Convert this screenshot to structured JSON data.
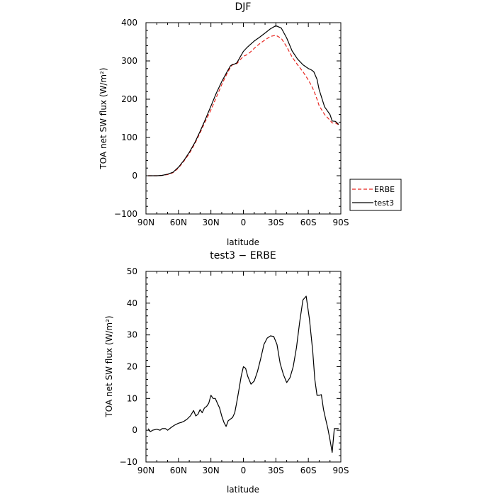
{
  "chart_data": [
    {
      "type": "line",
      "title": "DJF",
      "xlabel": "latitude",
      "ylabel": "TOA net SW flux (W/m²)",
      "xlim": [
        -90,
        90
      ],
      "ylim": [
        -100,
        400
      ],
      "xticks": [
        -90,
        -60,
        -30,
        0,
        30,
        60,
        90
      ],
      "xtick_labels": [
        "90N",
        "60N",
        "30N",
        "0",
        "30S",
        "60S",
        "90S"
      ],
      "yticks": [
        -100,
        0,
        100,
        200,
        300,
        400
      ],
      "legend": {
        "placement": "right",
        "entries": [
          "ERBE",
          "test3"
        ]
      },
      "x": [
        -88,
        -85,
        -80,
        -75,
        -70,
        -65,
        -60,
        -55,
        -50,
        -45,
        -40,
        -35,
        -30,
        -25,
        -20,
        -15,
        -12,
        -10,
        -8,
        -6,
        -3,
        0,
        3,
        6,
        10,
        15,
        20,
        25,
        30,
        35,
        40,
        45,
        50,
        55,
        60,
        62,
        65,
        68,
        70,
        75,
        80,
        82,
        85,
        88
      ],
      "series": [
        {
          "name": "ERBE",
          "color": "#e8251f",
          "dash": "dashed",
          "values": [
            0,
            0,
            0,
            1,
            3,
            8,
            20,
            38,
            58,
            83,
            112,
            143,
            172,
            205,
            238,
            268,
            283,
            290,
            292,
            293,
            303,
            312,
            316,
            322,
            333,
            345,
            355,
            364,
            367,
            359,
            337,
            310,
            290,
            272,
            250,
            240,
            223,
            200,
            183,
            160,
            145,
            138,
            138,
            133
          ]
        },
        {
          "name": "test3",
          "color": "#000000",
          "dash": "solid",
          "values": [
            0,
            0,
            0,
            1,
            4,
            9,
            22,
            40,
            61,
            86,
            116,
            148,
            182,
            216,
            246,
            272,
            287,
            291,
            292,
            295,
            310,
            325,
            334,
            342,
            352,
            362,
            373,
            384,
            392,
            386,
            360,
            326,
            305,
            290,
            280,
            278,
            272,
            252,
            225,
            180,
            160,
            143,
            142,
            134
          ]
        }
      ]
    },
    {
      "type": "line",
      "title": "test3 − ERBE",
      "xlabel": "latitude",
      "ylabel": "TOA net SW flux (W/m²)",
      "xlim": [
        -90,
        90
      ],
      "ylim": [
        -10,
        50
      ],
      "xticks": [
        -90,
        -60,
        -30,
        0,
        30,
        60,
        90
      ],
      "xtick_labels": [
        "90N",
        "60N",
        "30N",
        "0",
        "30S",
        "60S",
        "90S"
      ],
      "yticks": [
        -10,
        0,
        10,
        20,
        30,
        40,
        50
      ],
      "series": [
        {
          "color": "#000000",
          "x": [
            -88,
            -86,
            -84,
            -80,
            -77,
            -75,
            -72,
            -70,
            -67,
            -64,
            -60,
            -57,
            -55,
            -52,
            -49,
            -46,
            -44,
            -42,
            -40,
            -38,
            -36,
            -34,
            -32,
            -30,
            -28,
            -26,
            -24,
            -22,
            -20,
            -18,
            -16,
            -14,
            -12,
            -10,
            -8,
            -6,
            -4,
            -2,
            0,
            2,
            4,
            7,
            10,
            13,
            16,
            19,
            22,
            25,
            28,
            31,
            34,
            37,
            40,
            43,
            46,
            49,
            52,
            55,
            58,
            61,
            64,
            66,
            68,
            70,
            72,
            74,
            76,
            78,
            80,
            82,
            84,
            86,
            88
          ],
          "values": [
            0.5,
            -0.5,
            0,
            0.3,
            0,
            0.5,
            0.5,
            0,
            0.8,
            1.5,
            2.2,
            2.5,
            2.8,
            3.5,
            4.5,
            6.2,
            4.5,
            5.0,
            6.5,
            5.5,
            7.0,
            7.5,
            8.5,
            11.0,
            10.0,
            10.0,
            8.5,
            7.0,
            4.5,
            2.5,
            1.2,
            3.0,
            3.5,
            4.0,
            5.5,
            9.0,
            13.0,
            17.0,
            20.0,
            19.5,
            17.0,
            14.5,
            15.5,
            18.5,
            22.5,
            27.0,
            29.0,
            29.7,
            29.5,
            27.0,
            21.0,
            17.5,
            15.0,
            16.5,
            20.0,
            26.0,
            34.0,
            41.0,
            42.2,
            35.0,
            25.0,
            16.0,
            11.0,
            11.0,
            11.2,
            6.5,
            3.5,
            0.5,
            -3.0,
            -7.0,
            0.5,
            0.5,
            0.5
          ]
        }
      ]
    }
  ]
}
